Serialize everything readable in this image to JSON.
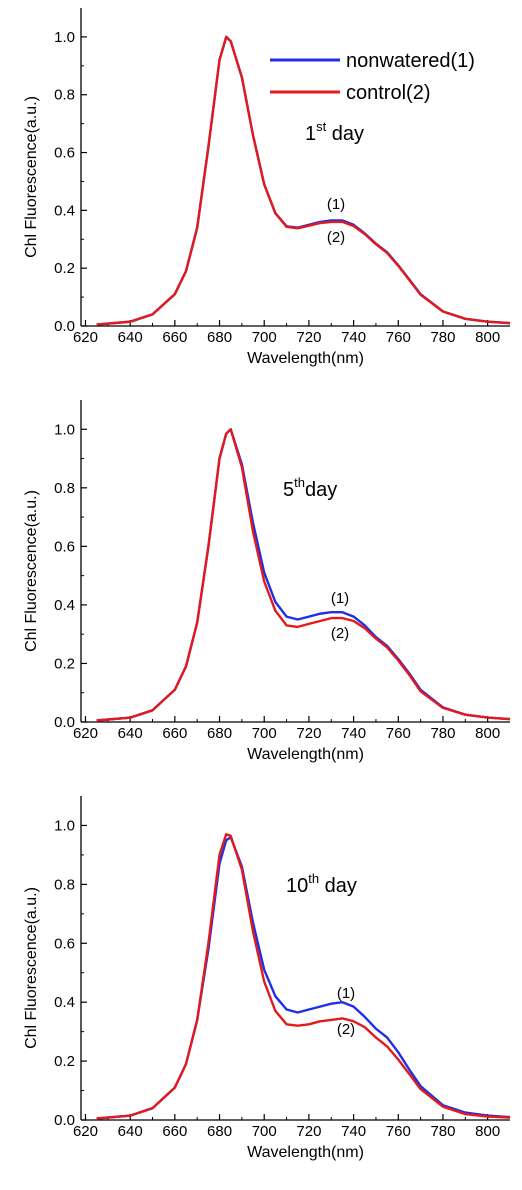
{
  "colors": {
    "nonwatered": "#1f2fe6",
    "control": "#e31a1c",
    "axis": "#000000"
  },
  "chart_data": [
    {
      "type": "line",
      "annotation": "1st day",
      "xlabel": "Wavelength(nm)",
      "ylabel": "Chl Fluorescence(a.u.)",
      "xlim": [
        618,
        810
      ],
      "ylim": [
        0.0,
        1.1
      ],
      "xticks": [
        620,
        640,
        660,
        680,
        700,
        720,
        740,
        760,
        780,
        800
      ],
      "yticks": [
        0.0,
        0.2,
        0.4,
        0.6,
        0.8,
        1.0
      ],
      "legend": {
        "position": "top-right",
        "entries": [
          "nonwatered(1)",
          "control(2)"
        ]
      },
      "curve_labels": [
        "(1)",
        "(2)"
      ],
      "x": [
        625,
        640,
        650,
        660,
        665,
        670,
        675,
        680,
        683,
        685,
        690,
        695,
        700,
        705,
        710,
        715,
        720,
        725,
        730,
        735,
        740,
        745,
        750,
        755,
        760,
        765,
        770,
        780,
        790,
        800,
        810
      ],
      "series": [
        {
          "name": "nonwatered(1)",
          "color_key": "nonwatered",
          "values": [
            0.005,
            0.015,
            0.04,
            0.11,
            0.19,
            0.34,
            0.62,
            0.92,
            1.0,
            0.985,
            0.86,
            0.66,
            0.49,
            0.39,
            0.345,
            0.34,
            0.35,
            0.36,
            0.365,
            0.365,
            0.35,
            0.32,
            0.285,
            0.255,
            0.21,
            0.16,
            0.11,
            0.05,
            0.025,
            0.015,
            0.01
          ]
        },
        {
          "name": "control(2)",
          "color_key": "control",
          "values": [
            0.005,
            0.015,
            0.04,
            0.11,
            0.19,
            0.34,
            0.62,
            0.92,
            1.0,
            0.985,
            0.86,
            0.66,
            0.49,
            0.39,
            0.343,
            0.338,
            0.347,
            0.356,
            0.36,
            0.36,
            0.346,
            0.318,
            0.283,
            0.253,
            0.208,
            0.158,
            0.108,
            0.05,
            0.025,
            0.015,
            0.01
          ]
        }
      ]
    },
    {
      "type": "line",
      "annotation": "5thday",
      "xlabel": "Wavelength(nm)",
      "ylabel": "Chl Fluorescence(a.u.)",
      "xlim": [
        618,
        810
      ],
      "ylim": [
        0.0,
        1.1
      ],
      "xticks": [
        620,
        640,
        660,
        680,
        700,
        720,
        740,
        760,
        780,
        800
      ],
      "yticks": [
        0.0,
        0.2,
        0.4,
        0.6,
        0.8,
        1.0
      ],
      "curve_labels": [
        "(1)",
        "(2)"
      ],
      "x": [
        625,
        640,
        650,
        660,
        665,
        670,
        675,
        680,
        683,
        685,
        690,
        695,
        700,
        705,
        710,
        715,
        720,
        725,
        730,
        735,
        740,
        745,
        750,
        755,
        760,
        765,
        770,
        780,
        790,
        800,
        810
      ],
      "series": [
        {
          "name": "nonwatered(1)",
          "color_key": "nonwatered",
          "values": [
            0.005,
            0.015,
            0.04,
            0.11,
            0.19,
            0.34,
            0.6,
            0.9,
            0.985,
            1.0,
            0.88,
            0.68,
            0.51,
            0.41,
            0.36,
            0.35,
            0.36,
            0.37,
            0.375,
            0.375,
            0.36,
            0.33,
            0.29,
            0.26,
            0.215,
            0.165,
            0.11,
            0.05,
            0.025,
            0.015,
            0.01
          ]
        },
        {
          "name": "control(2)",
          "color_key": "control",
          "values": [
            0.005,
            0.015,
            0.04,
            0.11,
            0.19,
            0.34,
            0.6,
            0.9,
            0.985,
            1.0,
            0.87,
            0.65,
            0.48,
            0.38,
            0.33,
            0.325,
            0.335,
            0.345,
            0.355,
            0.355,
            0.345,
            0.32,
            0.285,
            0.255,
            0.21,
            0.16,
            0.105,
            0.048,
            0.025,
            0.015,
            0.01
          ]
        }
      ]
    },
    {
      "type": "line",
      "annotation": "10th day",
      "xlabel": "Wavelength(nm)",
      "ylabel": "Chl Fluorescence(a.u.)",
      "xlim": [
        618,
        810
      ],
      "ylim": [
        0.0,
        1.1
      ],
      "xticks": [
        620,
        640,
        660,
        680,
        700,
        720,
        740,
        760,
        780,
        800
      ],
      "yticks": [
        0.0,
        0.2,
        0.4,
        0.6,
        0.8,
        1.0
      ],
      "curve_labels": [
        "(1)",
        "(2)"
      ],
      "x": [
        625,
        640,
        650,
        660,
        665,
        670,
        675,
        680,
        683,
        685,
        690,
        695,
        700,
        705,
        710,
        715,
        720,
        725,
        730,
        735,
        740,
        745,
        750,
        755,
        760,
        765,
        770,
        780,
        790,
        800,
        810
      ],
      "series": [
        {
          "name": "nonwatered(1)",
          "color_key": "nonwatered",
          "values": [
            0.005,
            0.015,
            0.04,
            0.11,
            0.19,
            0.34,
            0.58,
            0.87,
            0.95,
            0.96,
            0.86,
            0.67,
            0.51,
            0.42,
            0.375,
            0.365,
            0.375,
            0.385,
            0.395,
            0.4,
            0.385,
            0.35,
            0.31,
            0.28,
            0.23,
            0.17,
            0.115,
            0.05,
            0.025,
            0.015,
            0.01
          ]
        },
        {
          "name": "control(2)",
          "color_key": "control",
          "values": [
            0.005,
            0.015,
            0.04,
            0.11,
            0.19,
            0.34,
            0.6,
            0.9,
            0.97,
            0.965,
            0.85,
            0.64,
            0.47,
            0.37,
            0.325,
            0.32,
            0.325,
            0.335,
            0.34,
            0.345,
            0.335,
            0.315,
            0.28,
            0.25,
            0.205,
            0.155,
            0.105,
            0.045,
            0.02,
            0.012,
            0.008
          ]
        }
      ]
    }
  ]
}
